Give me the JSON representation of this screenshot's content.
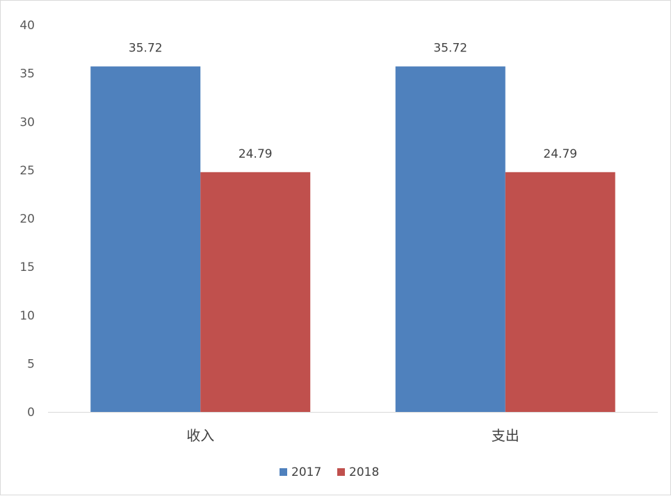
{
  "chart_data": {
    "type": "bar",
    "categories": [
      "收入",
      "支出"
    ],
    "series": [
      {
        "name": "2017",
        "values": [
          35.72,
          35.72
        ],
        "color": "#4f81bd"
      },
      {
        "name": "2018",
        "values": [
          24.79,
          24.79
        ],
        "color": "#c0504d"
      }
    ],
    "title": "",
    "xlabel": "",
    "ylabel": "",
    "ylim": [
      0,
      40
    ],
    "yticks": [
      0,
      5,
      10,
      15,
      20,
      25,
      30,
      35,
      40
    ],
    "data_labels": [
      "35.72",
      "24.79",
      "35.72",
      "24.79"
    ],
    "grid": false,
    "legend_position": "bottom",
    "axis_color": "#d9d9d9"
  }
}
